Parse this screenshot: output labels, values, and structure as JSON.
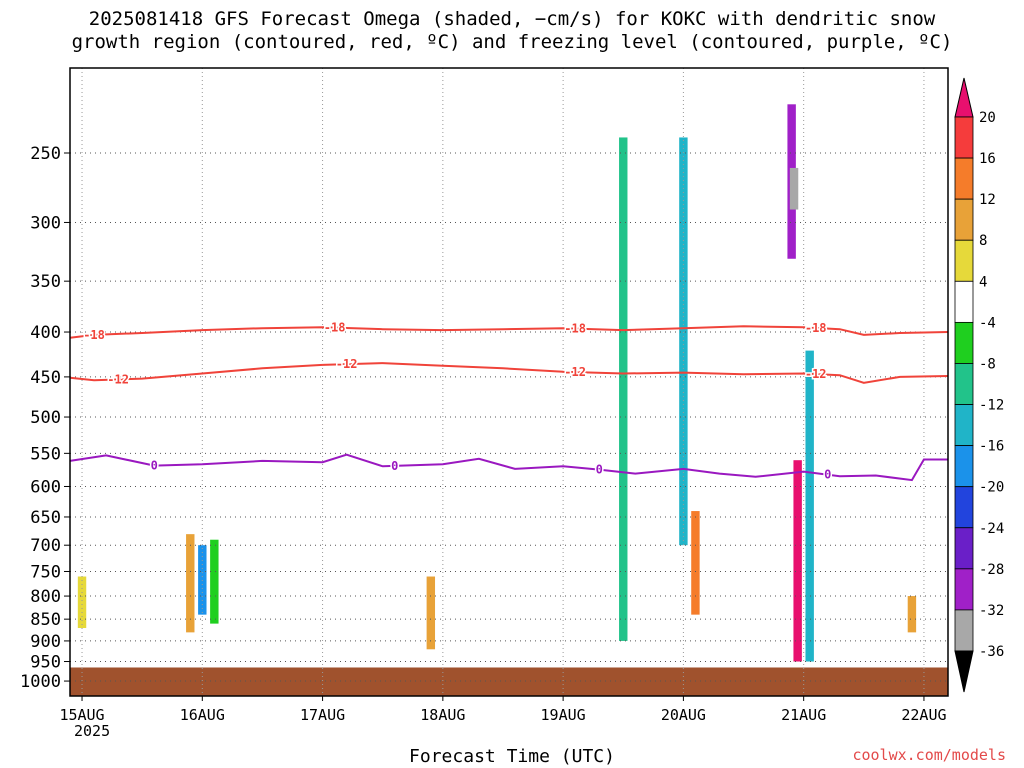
{
  "title": {
    "line1": "2025081418 GFS Forecast Omega (shaded, −cm/s) for KOKC with dendritic snow",
    "line2": "growth region (contoured, red, ºC) and freezing level (contoured, purple, ºC)"
  },
  "xlabel": "Forecast Time (UTC)",
  "year_label": "2025",
  "credit": "coolwx.com/models",
  "chart_data": {
    "type": "heatmap",
    "title": "2025081418 GFS Forecast Omega (shaded, −cm/s) for KOKC with dendritic snow growth region (contoured, red, ºC) and freezing level (contoured, purple, ºC)",
    "xlabel": "Forecast Time (UTC)",
    "ylabel": "",
    "x_ticks": [
      "15AUG",
      "16AUG",
      "17AUG",
      "18AUG",
      "19AUG",
      "20AUG",
      "21AUG",
      "22AUG"
    ],
    "xlim": [
      0.9,
      8.2
    ],
    "y_ticks": [
      250,
      300,
      350,
      400,
      450,
      500,
      550,
      600,
      650,
      700,
      750,
      800,
      850,
      900,
      950,
      1000
    ],
    "ylim": [
      200,
      1040
    ],
    "y_scale": "log-pressure",
    "grid": true,
    "legend": "colorbar-right",
    "colorbar": {
      "labels": [
        20,
        16,
        12,
        8,
        4,
        -4,
        -8,
        -12,
        -16,
        -20,
        -24,
        -28,
        -32,
        -36
      ],
      "bins": [
        {
          "range": ">20",
          "color": "#e8106e"
        },
        {
          "range": "16-20",
          "color": "#f53c3c"
        },
        {
          "range": "12-16",
          "color": "#f57c2a"
        },
        {
          "range": "8-12",
          "color": "#e8a238"
        },
        {
          "range": "4-8",
          "color": "#e6d93a"
        },
        {
          "range": "-4-4",
          "color": "#ffffff"
        },
        {
          "range": "-8--4",
          "color": "#1fcf1f"
        },
        {
          "range": "-12--8",
          "color": "#22c38a"
        },
        {
          "range": "-16--12",
          "color": "#20b4c8"
        },
        {
          "range": "-20--16",
          "color": "#1b92ea"
        },
        {
          "range": "-24--20",
          "color": "#2244dd"
        },
        {
          "range": "-28--24",
          "color": "#6a1fc8"
        },
        {
          "range": "-32--28",
          "color": "#a020c8"
        },
        {
          "range": "-36--32",
          "color": "#a8a8a8"
        },
        {
          "range": "<-36",
          "color": "#000000"
        }
      ]
    },
    "contours": [
      {
        "level": -18,
        "color": "#f0433a",
        "label": "-18",
        "x": [
          0.9,
          1.1,
          1.5,
          2.0,
          2.5,
          3.0,
          3.5,
          4.0,
          4.5,
          5.0,
          5.5,
          6.0,
          6.5,
          7.0,
          7.3,
          7.5,
          7.8,
          8.2
        ],
        "p": [
          406,
          403,
          401,
          398,
          396,
          395,
          397,
          398,
          397,
          396,
          398,
          396,
          394,
          395,
          397,
          403,
          401,
          400
        ],
        "label_x": [
          1.1,
          3.1,
          5.1,
          7.1
        ]
      },
      {
        "level": -12,
        "color": "#f0433a",
        "label": "-12",
        "x": [
          0.9,
          1.1,
          1.5,
          2.0,
          2.5,
          3.0,
          3.5,
          4.0,
          4.5,
          5.0,
          5.5,
          6.0,
          6.5,
          7.0,
          7.3,
          7.5,
          7.8,
          8.2
        ],
        "p": [
          451,
          454,
          452,
          446,
          440,
          436,
          434,
          437,
          440,
          444,
          446,
          445,
          447,
          446,
          448,
          457,
          450,
          449
        ],
        "label_x": [
          1.3,
          3.2,
          5.1,
          7.1
        ]
      },
      {
        "level": 0,
        "color": "#9a18c0",
        "label": "0",
        "x": [
          0.9,
          1.2,
          1.6,
          2.0,
          2.5,
          3.0,
          3.2,
          3.5,
          4.0,
          4.3,
          4.6,
          5.0,
          5.3,
          5.6,
          6.0,
          6.3,
          6.6,
          7.0,
          7.3,
          7.6,
          7.9,
          8.0,
          8.2
        ],
        "p": [
          561,
          553,
          568,
          566,
          561,
          563,
          552,
          569,
          566,
          558,
          573,
          569,
          574,
          580,
          573,
          580,
          585,
          577,
          584,
          583,
          590,
          559,
          559
        ],
        "label_x": [
          1.6,
          3.6,
          5.3,
          7.2
        ]
      }
    ],
    "ground": {
      "from_p": 965,
      "color": "#a0522d"
    },
    "omega_cells": [
      {
        "x": 1.0,
        "p1": 760,
        "p2": 870,
        "v": 6
      },
      {
        "x": 1.9,
        "p1": 680,
        "p2": 880,
        "v": 10
      },
      {
        "x": 2.0,
        "p1": 700,
        "p2": 840,
        "v": -18
      },
      {
        "x": 2.1,
        "p1": 690,
        "p2": 860,
        "v": -6
      },
      {
        "x": 3.9,
        "p1": 760,
        "p2": 920,
        "v": 12
      },
      {
        "x": 5.5,
        "p1": 240,
        "p2": 900,
        "v": -10
      },
      {
        "x": 6.0,
        "p1": 240,
        "p2": 700,
        "v": -14
      },
      {
        "x": 6.1,
        "p1": 640,
        "p2": 840,
        "v": 16
      },
      {
        "x": 6.9,
        "p1": 220,
        "p2": 330,
        "v": -30
      },
      {
        "x": 6.92,
        "p1": 260,
        "p2": 290,
        "v": -34
      },
      {
        "x": 6.95,
        "p1": 560,
        "p2": 950,
        "v": 22
      },
      {
        "x": 7.05,
        "p1": 420,
        "p2": 950,
        "v": -14
      },
      {
        "x": 7.9,
        "p1": 800,
        "p2": 880,
        "v": 10
      }
    ]
  }
}
